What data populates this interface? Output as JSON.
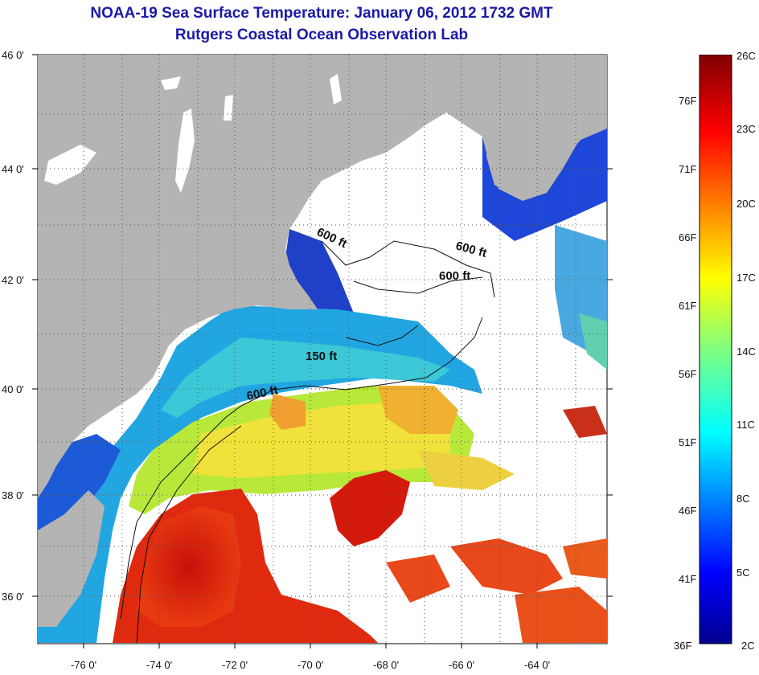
{
  "header": {
    "title": "NOAA-19 Sea Surface Temperature:  January 06, 2012 1732 GMT",
    "subtitle": "Rutgers Coastal Ocean Observation Lab"
  },
  "map": {
    "lat_labels": [
      "46 0'",
      "44 0'",
      "42 0'",
      "40 0'",
      "38 0'",
      "36 0'"
    ],
    "lon_labels": [
      "-76 0'",
      "-74 0'",
      "-72 0'",
      "-70 0'",
      "-68 0'",
      "-66 0'",
      "-64 0'"
    ],
    "contours": [
      "600 ft",
      "600 ft",
      "600 ft",
      "150 ft",
      "600 ft"
    ],
    "colors": {
      "land": "#b4b4b4",
      "no_data": "#ffffff",
      "cold": "#1e3cd2",
      "warm": "#dc1e0a"
    }
  },
  "colorbar": {
    "fahrenheit": [
      "76F",
      "71F",
      "66F",
      "61F",
      "56F",
      "51F",
      "46F",
      "41F",
      "36F"
    ],
    "celsius": [
      "26C",
      "23C",
      "20C",
      "17C",
      "14C",
      "11C",
      "8C",
      "5C",
      "2C"
    ],
    "range_c": [
      2,
      26
    ]
  }
}
